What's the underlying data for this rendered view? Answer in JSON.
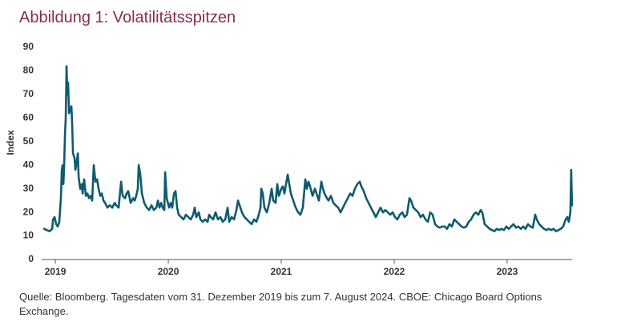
{
  "chart_data": {
    "type": "line",
    "title": "Abbildung 1: Volatilitätsspitzen",
    "y_label": "Index",
    "source": [
      "Quelle: Bloomberg. Tagesdaten vom 31. Dezember 2019 bis zum 7. August 2024. CBOE: Chicago Board Options",
      "Exchange."
    ],
    "xlim": [
      2018.9,
      2023.575
    ],
    "xticks": [
      2019,
      2020,
      2021,
      2022,
      2023
    ],
    "ylim": [
      0,
      90
    ],
    "yticks": [
      0,
      10,
      20,
      30,
      40,
      50,
      60,
      70,
      80,
      90
    ],
    "grid": false,
    "series": [
      {
        "color": "#0e5b6f",
        "x": [
          2018.901,
          2018.922,
          2018.95,
          2018.972,
          2018.979,
          2018.993,
          2019.007,
          2019.021,
          2019.035,
          2019.05,
          2019.057,
          2019.064,
          2019.071,
          2019.078,
          2019.085,
          2019.092,
          2019.099,
          2019.106,
          2019.113,
          2019.121,
          2019.135,
          2019.142,
          2019.149,
          2019.156,
          2019.17,
          2019.177,
          2019.191,
          2019.199,
          2019.206,
          2019.22,
          2019.234,
          2019.241,
          2019.255,
          2019.27,
          2019.284,
          2019.298,
          2019.312,
          2019.326,
          2019.34,
          2019.355,
          2019.369,
          2019.383,
          2019.397,
          2019.411,
          2019.426,
          2019.44,
          2019.461,
          2019.482,
          2019.504,
          2019.525,
          2019.539,
          2019.56,
          2019.582,
          2019.596,
          2019.617,
          2019.631,
          2019.645,
          2019.667,
          2019.688,
          2019.702,
          2019.716,
          2019.73,
          2019.738,
          2019.752,
          2019.766,
          2019.787,
          2019.809,
          2019.83,
          2019.851,
          2019.872,
          2019.894,
          2019.908,
          2019.922,
          2019.936,
          2019.95,
          2019.965,
          2019.972,
          2019.986,
          2020.007,
          2020.021,
          2020.035,
          2020.05,
          2020.064,
          2020.078,
          2020.092,
          2020.113,
          2020.135,
          2020.156,
          2020.177,
          2020.199,
          2020.22,
          2020.234,
          2020.248,
          2020.27,
          2020.284,
          2020.305,
          2020.326,
          2020.348,
          2020.362,
          2020.376,
          2020.397,
          2020.418,
          2020.44,
          2020.461,
          2020.482,
          2020.504,
          2020.525,
          2020.539,
          2020.56,
          2020.582,
          2020.603,
          2020.617,
          2020.631,
          2020.652,
          2020.674,
          2020.695,
          2020.716,
          2020.738,
          2020.759,
          2020.78,
          2020.801,
          2020.816,
          2020.823,
          2020.837,
          2020.851,
          2020.872,
          2020.894,
          2020.915,
          2020.929,
          2020.95,
          2020.965,
          2020.979,
          2021.0,
          2021.014,
          2021.028,
          2021.057,
          2021.071,
          2021.085,
          2021.106,
          2021.128,
          2021.149,
          2021.17,
          2021.191,
          2021.213,
          2021.227,
          2021.241,
          2021.255,
          2021.277,
          2021.298,
          2021.319,
          2021.333,
          2021.355,
          2021.369,
          2021.383,
          2021.404,
          2021.418,
          2021.44,
          2021.461,
          2021.482,
          2021.504,
          2021.525,
          2021.546,
          2021.567,
          2021.589,
          2021.61,
          2021.631,
          2021.652,
          2021.674,
          2021.695,
          2021.709,
          2021.73,
          2021.752,
          2021.773,
          2021.794,
          2021.816,
          2021.837,
          2021.858,
          2021.879,
          2021.901,
          2021.922,
          2021.943,
          2021.965,
          2021.986,
          2022.007,
          2022.028,
          2022.05,
          2022.071,
          2022.092,
          2022.113,
          2022.135,
          2022.149,
          2022.17,
          2022.191,
          2022.213,
          2022.234,
          2022.255,
          2022.277,
          2022.298,
          2022.319,
          2022.34,
          2022.362,
          2022.383,
          2022.404,
          2022.426,
          2022.447,
          2022.468,
          2022.489,
          2022.511,
          2022.532,
          2022.553,
          2022.574,
          2022.596,
          2022.617,
          2022.638,
          2022.66,
          2022.681,
          2022.702,
          2022.723,
          2022.745,
          2022.766,
          2022.78,
          2022.801,
          2022.823,
          2022.844,
          2022.865,
          2022.887,
          2022.908,
          2022.929,
          2022.95,
          2022.972,
          2022.993,
          2023.014,
          2023.035,
          2023.057,
          2023.078,
          2023.099,
          2023.121,
          2023.142,
          2023.163,
          2023.184,
          2023.206,
          2023.227,
          2023.248,
          2023.262,
          2023.284,
          2023.305,
          2023.326,
          2023.348,
          2023.369,
          2023.39,
          2023.411,
          2023.433,
          2023.454,
          2023.475,
          2023.496,
          2023.518,
          2023.532,
          2023.546,
          2023.56,
          2023.567,
          2023.574
        ],
        "values": [
          13,
          12.5,
          12,
          13,
          17,
          18,
          15,
          14,
          16,
          27,
          38,
          40,
          32,
          40,
          53,
          60,
          82,
          70,
          75,
          62,
          64,
          65,
          57,
          45,
          43,
          38,
          42,
          45,
          35,
          30,
          32,
          28,
          34,
          27,
          28,
          26,
          27,
          25,
          40,
          33,
          34,
          30,
          27,
          28,
          25,
          24,
          22,
          23,
          22,
          24,
          23,
          22,
          33,
          27,
          26,
          28,
          29,
          24,
          26,
          25,
          27,
          30,
          40,
          36,
          28,
          24,
          22,
          21,
          23,
          21,
          22,
          25,
          22,
          24,
          22,
          21,
          37,
          26,
          22,
          24,
          22,
          28,
          29,
          22,
          19,
          18,
          17,
          19,
          18,
          17,
          19,
          22,
          18,
          20,
          17,
          16,
          17,
          16,
          19,
          18,
          17,
          20,
          17,
          18,
          16,
          17,
          22,
          16,
          18,
          17,
          21,
          25,
          23,
          20,
          18,
          17,
          16,
          15,
          17,
          16,
          19,
          22,
          30,
          28,
          22,
          20,
          24,
          30,
          25,
          24,
          32,
          27,
          30,
          31,
          28,
          36,
          32,
          28,
          25,
          22,
          20,
          19,
          22,
          34,
          30,
          33,
          31,
          27,
          30,
          27,
          25,
          33,
          30,
          28,
          26,
          25,
          27,
          24,
          23,
          22,
          20,
          22,
          24,
          26,
          28,
          27,
          30,
          32,
          33,
          31,
          29,
          26,
          24,
          22,
          20,
          18,
          20,
          22,
          20,
          21,
          20,
          19,
          20,
          18,
          17,
          19,
          20,
          18,
          19,
          26,
          25,
          22,
          21,
          20,
          18,
          19,
          17,
          16,
          20,
          19,
          15,
          14,
          13.5,
          14,
          14,
          13,
          15,
          14,
          17,
          16,
          15,
          14,
          13.5,
          14,
          16,
          17,
          19,
          20,
          19,
          21,
          20,
          15,
          14,
          13,
          12.5,
          12,
          13,
          12.5,
          13,
          12.5,
          14,
          13,
          14,
          15,
          13.5,
          14,
          13,
          14,
          13,
          15,
          14,
          13.5,
          19,
          17,
          15,
          14,
          13,
          12.5,
          13,
          12.5,
          13,
          12,
          12.5,
          13,
          14,
          17,
          18,
          16,
          20,
          38,
          23
        ]
      }
    ]
  }
}
